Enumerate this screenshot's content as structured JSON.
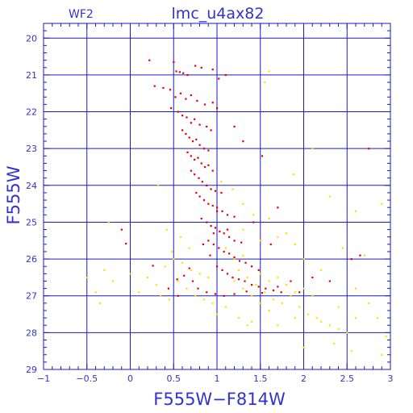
{
  "chart_data": {
    "type": "scatter",
    "title": "lmc_u4ax82",
    "subtitle": "WF2",
    "xlabel": "F555W−F814W",
    "ylabel": "F555W",
    "xlim": [
      -1,
      3
    ],
    "ylim": [
      29,
      19.6
    ],
    "y_inverted": true,
    "grid": true,
    "x_ticks": [
      "−1",
      "−0.5",
      "0",
      "0.5",
      "1",
      "1.5",
      "2",
      "2.5",
      "3"
    ],
    "x_tick_values": [
      -1,
      -0.5,
      0,
      0.5,
      1,
      1.5,
      2,
      2.5,
      3
    ],
    "y_ticks": [
      "20",
      "21",
      "22",
      "23",
      "24",
      "25",
      "26",
      "27",
      "28",
      "29"
    ],
    "y_tick_values": [
      20,
      21,
      22,
      23,
      24,
      25,
      26,
      27,
      28,
      29
    ],
    "colors": {
      "frame": "#1a1acc",
      "text": "#3333cc",
      "primary": "#e00000",
      "secondary": "#ffe000"
    },
    "series": [
      {
        "color": "#e00000",
        "points": [
          [
            0.22,
            20.6
          ],
          [
            0.5,
            20.65
          ],
          [
            0.53,
            20.9
          ],
          [
            0.57,
            20.92
          ],
          [
            0.61,
            20.95
          ],
          [
            0.66,
            21.0
          ],
          [
            0.75,
            20.75
          ],
          [
            0.82,
            20.8
          ],
          [
            0.95,
            20.85
          ],
          [
            1.02,
            21.1
          ],
          [
            1.1,
            21.0
          ],
          [
            0.28,
            21.3
          ],
          [
            0.38,
            21.35
          ],
          [
            0.46,
            21.4
          ],
          [
            0.52,
            21.6
          ],
          [
            0.58,
            21.5
          ],
          [
            0.64,
            21.65
          ],
          [
            0.7,
            21.55
          ],
          [
            0.77,
            21.7
          ],
          [
            0.86,
            21.8
          ],
          [
            0.95,
            21.75
          ],
          [
            1.0,
            21.9
          ],
          [
            0.47,
            21.9
          ],
          [
            0.55,
            22.0
          ],
          [
            0.6,
            22.1
          ],
          [
            0.65,
            22.15
          ],
          [
            0.7,
            22.3
          ],
          [
            0.74,
            22.2
          ],
          [
            0.8,
            22.35
          ],
          [
            0.88,
            22.4
          ],
          [
            0.93,
            22.5
          ],
          [
            0.6,
            22.5
          ],
          [
            0.64,
            22.6
          ],
          [
            0.68,
            22.7
          ],
          [
            0.72,
            22.8
          ],
          [
            0.76,
            22.75
          ],
          [
            0.8,
            22.9
          ],
          [
            0.85,
            23.0
          ],
          [
            0.9,
            23.05
          ],
          [
            0.66,
            23.1
          ],
          [
            0.7,
            23.2
          ],
          [
            0.74,
            23.3
          ],
          [
            0.78,
            23.25
          ],
          [
            0.82,
            23.4
          ],
          [
            0.86,
            23.5
          ],
          [
            0.9,
            23.45
          ],
          [
            0.95,
            23.6
          ],
          [
            0.7,
            23.6
          ],
          [
            0.74,
            23.7
          ],
          [
            0.79,
            23.8
          ],
          [
            0.83,
            23.9
          ],
          [
            0.88,
            24.0
          ],
          [
            0.93,
            24.1
          ],
          [
            0.98,
            24.15
          ],
          [
            1.05,
            24.2
          ],
          [
            0.76,
            24.2
          ],
          [
            0.8,
            24.3
          ],
          [
            0.85,
            24.4
          ],
          [
            0.9,
            24.5
          ],
          [
            0.95,
            24.55
          ],
          [
            1.0,
            24.6
          ],
          [
            1.06,
            24.7
          ],
          [
            1.12,
            24.8
          ],
          [
            1.2,
            24.85
          ],
          [
            0.82,
            24.9
          ],
          [
            0.88,
            25.0
          ],
          [
            0.93,
            25.1
          ],
          [
            0.98,
            25.15
          ],
          [
            1.03,
            25.25
          ],
          [
            1.08,
            25.3
          ],
          [
            1.14,
            25.4
          ],
          [
            1.2,
            25.5
          ],
          [
            1.28,
            25.55
          ],
          [
            0.9,
            25.5
          ],
          [
            0.96,
            25.6
          ],
          [
            1.02,
            25.7
          ],
          [
            1.08,
            25.8
          ],
          [
            1.14,
            25.85
          ],
          [
            1.2,
            25.95
          ],
          [
            1.26,
            26.05
          ],
          [
            1.33,
            26.1
          ],
          [
            1.4,
            26.2
          ],
          [
            1.48,
            26.3
          ],
          [
            1.0,
            26.2
          ],
          [
            1.06,
            26.3
          ],
          [
            1.12,
            26.4
          ],
          [
            1.18,
            26.5
          ],
          [
            1.25,
            26.55
          ],
          [
            1.32,
            26.6
          ],
          [
            1.4,
            26.7
          ],
          [
            1.48,
            26.75
          ],
          [
            1.56,
            26.8
          ],
          [
            1.65,
            26.85
          ],
          [
            1.74,
            26.9
          ],
          [
            0.78,
            26.8
          ],
          [
            0.88,
            26.9
          ],
          [
            0.98,
            26.95
          ],
          [
            1.08,
            27.0
          ],
          [
            1.2,
            26.95
          ],
          [
            1.34,
            26.88
          ],
          [
            1.52,
            26.92
          ],
          [
            1.7,
            26.75
          ],
          [
            1.2,
            22.4
          ],
          [
            1.3,
            22.8
          ],
          [
            1.52,
            23.2
          ],
          [
            1.7,
            24.6
          ],
          [
            1.0,
            24.7
          ],
          [
            0.96,
            25.3
          ],
          [
            1.42,
            25.0
          ],
          [
            1.62,
            25.6
          ],
          [
            2.3,
            26.6
          ],
          [
            -0.05,
            25.58
          ],
          [
            -0.1,
            25.2
          ],
          [
            0.26,
            26.18
          ],
          [
            0.54,
            26.55
          ],
          [
            0.62,
            26.45
          ],
          [
            0.44,
            26.8
          ],
          [
            0.55,
            27.0
          ],
          [
            0.72,
            26.6
          ],
          [
            0.68,
            26.25
          ],
          [
            1.85,
            26.6
          ],
          [
            1.95,
            26.9
          ],
          [
            2.1,
            26.5
          ],
          [
            2.55,
            26.0
          ],
          [
            2.65,
            25.9
          ],
          [
            2.75,
            23.0
          ],
          [
            0.92,
            25.9
          ],
          [
            1.12,
            25.2
          ],
          [
            0.84,
            25.6
          ]
        ]
      },
      {
        "color": "#ffe000",
        "points": [
          [
            1.6,
            20.9
          ],
          [
            1.55,
            21.2
          ],
          [
            2.1,
            23.0
          ],
          [
            1.88,
            23.7
          ],
          [
            2.3,
            24.3
          ],
          [
            2.6,
            24.7
          ],
          [
            2.9,
            24.5
          ],
          [
            3.0,
            25.4
          ],
          [
            2.45,
            25.7
          ],
          [
            2.7,
            25.9
          ],
          [
            1.05,
            23.9
          ],
          [
            1.18,
            24.1
          ],
          [
            1.3,
            24.5
          ],
          [
            1.42,
            24.8
          ],
          [
            1.6,
            24.9
          ],
          [
            1.3,
            25.2
          ],
          [
            1.5,
            25.5
          ],
          [
            1.7,
            25.4
          ],
          [
            1.9,
            25.6
          ],
          [
            1.1,
            25.7
          ],
          [
            1.2,
            26.0
          ],
          [
            1.3,
            25.9
          ],
          [
            1.4,
            26.2
          ],
          [
            1.5,
            26.4
          ],
          [
            1.6,
            26.6
          ],
          [
            1.7,
            26.5
          ],
          [
            1.8,
            26.7
          ],
          [
            1.9,
            26.9
          ],
          [
            2.0,
            26.8
          ],
          [
            2.1,
            27.0
          ],
          [
            1.25,
            26.3
          ],
          [
            1.35,
            26.5
          ],
          [
            1.45,
            26.7
          ],
          [
            1.55,
            26.9
          ],
          [
            1.65,
            27.1
          ],
          [
            1.75,
            27.2
          ],
          [
            1.85,
            27.0
          ],
          [
            1.95,
            27.3
          ],
          [
            2.05,
            27.5
          ],
          [
            2.15,
            27.6
          ],
          [
            1.2,
            26.6
          ],
          [
            1.3,
            26.8
          ],
          [
            1.4,
            27.0
          ],
          [
            1.5,
            27.2
          ],
          [
            1.6,
            27.4
          ],
          [
            1.25,
            27.6
          ],
          [
            1.35,
            27.8
          ],
          [
            1.1,
            27.3
          ],
          [
            1.0,
            27.5
          ],
          [
            0.95,
            27.2
          ],
          [
            0.5,
            26.0
          ],
          [
            0.6,
            26.1
          ],
          [
            0.7,
            26.3
          ],
          [
            0.8,
            26.4
          ],
          [
            0.9,
            26.5
          ],
          [
            0.55,
            26.6
          ],
          [
            0.65,
            26.8
          ],
          [
            0.75,
            27.0
          ],
          [
            0.85,
            27.1
          ],
          [
            0.45,
            27.1
          ],
          [
            0.2,
            26.5
          ],
          [
            0.3,
            26.7
          ],
          [
            0.1,
            26.9
          ],
          [
            0.0,
            26.4
          ],
          [
            0.35,
            27.0
          ],
          [
            0.4,
            26.2
          ],
          [
            0.58,
            25.4
          ],
          [
            0.68,
            25.7
          ],
          [
            0.48,
            25.8
          ],
          [
            -0.3,
            26.3
          ],
          [
            -0.2,
            26.6
          ],
          [
            -0.4,
            26.9
          ],
          [
            -0.5,
            26.5
          ],
          [
            -0.35,
            27.2
          ],
          [
            -0.25,
            25.0
          ],
          [
            0.32,
            24.0
          ],
          [
            0.42,
            25.2
          ],
          [
            2.2,
            27.7
          ],
          [
            2.3,
            27.8
          ],
          [
            2.4,
            27.9
          ],
          [
            2.5,
            28.0
          ],
          [
            2.6,
            27.6
          ],
          [
            2.85,
            27.6
          ],
          [
            2.95,
            28.1
          ],
          [
            2.55,
            28.5
          ],
          [
            2.9,
            28.6
          ],
          [
            2.0,
            28.4
          ],
          [
            1.7,
            27.8
          ],
          [
            1.4,
            27.7
          ],
          [
            2.4,
            27.3
          ],
          [
            2.2,
            26.3
          ],
          [
            2.0,
            26.0
          ],
          [
            1.8,
            25.3
          ],
          [
            2.6,
            26.8
          ],
          [
            2.75,
            27.2
          ],
          [
            2.35,
            28.3
          ],
          [
            1.9,
            27.6
          ]
        ]
      }
    ]
  }
}
